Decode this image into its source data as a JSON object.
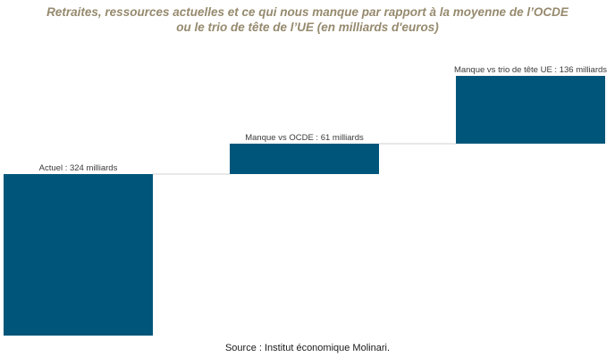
{
  "title_lines": [
    "Retraites, ressources actuelles et ce qui nous manque par rapport à la moyenne de l’OCDE",
    "ou le trio de tête de l’UE (en milliards d'euros)"
  ],
  "source": "Source : Institut économique Molinari.",
  "colors": {
    "bar": "#00567a",
    "connector": "#d0d0d0",
    "title": "#968a6e"
  },
  "chart_data": {
    "type": "bar",
    "subtype": "waterfall",
    "categories": [
      "Actuel",
      "Manque vs OCDE",
      "Manque vs trio de tête UE"
    ],
    "values": [
      324,
      61,
      136
    ],
    "data_labels": [
      "Actuel : 324 milliards",
      "Manque vs OCDE : 61 milliards",
      "Manque vs trio de tête UE : 136 milliards"
    ],
    "ylim": [
      0,
      521
    ],
    "grid": false,
    "legend": "none"
  }
}
